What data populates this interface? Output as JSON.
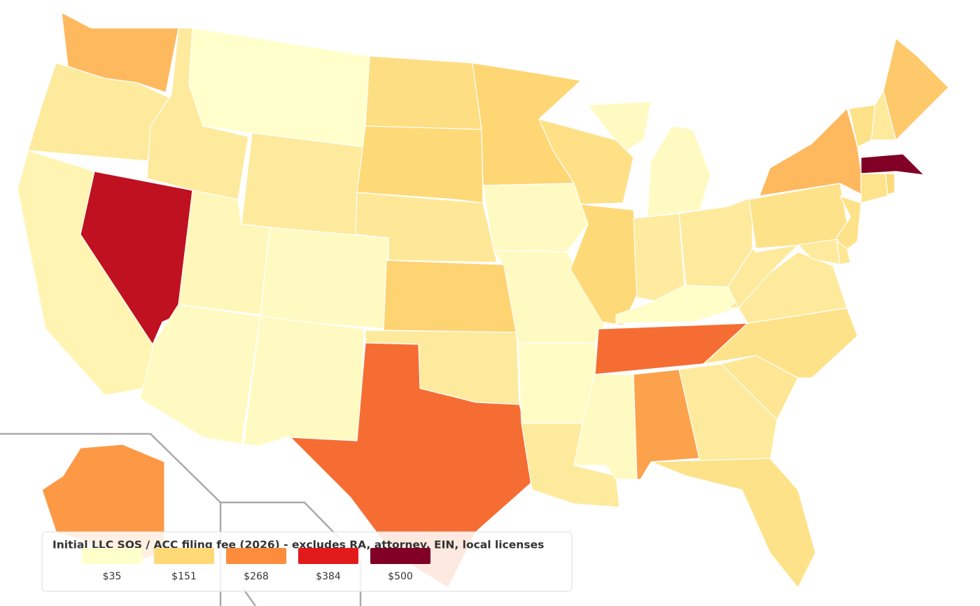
{
  "map_data": {
    "legend": {
      "title": "Initial LLC SOS / ACC filing fee (2026) - excludes RA, attorney, EIN, local licenses",
      "stops": [
        {
          "value": 35,
          "label": "$35"
        },
        {
          "value": 151,
          "label": "$151"
        },
        {
          "value": 268,
          "label": "$268"
        },
        {
          "value": 384,
          "label": "$384"
        },
        {
          "value": 500,
          "label": "$500"
        }
      ],
      "colors": [
        "#ffffcc",
        "#fed976",
        "#fd8d3c",
        "#e31a1c",
        "#800026"
      ]
    },
    "region_values": [
      200,
      100,
      70,
      425,
      100,
      35,
      100,
      59,
      50,
      50,
      50,
      135,
      150,
      105,
      160,
      100,
      300,
      155,
      50,
      50,
      45,
      100,
      130,
      150,
      50,
      95,
      99,
      40,
      300,
      50,
      236,
      100,
      125,
      110,
      125,
      100,
      100,
      125,
      200,
      125,
      100,
      175,
      500,
      150,
      120,
      125,
      110,
      100,
      250
    ]
  }
}
